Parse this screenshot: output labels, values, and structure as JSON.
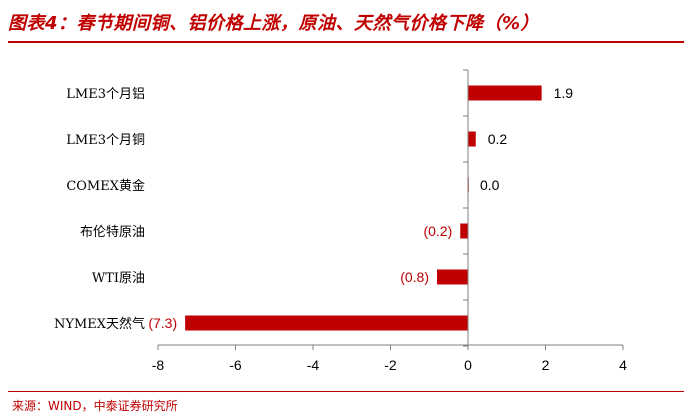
{
  "header": {
    "title": "图表4：春节期间铜、铝价格上涨，原油、天然气价格下降（%）"
  },
  "footer": {
    "source": "来源：WIND，中泰证券研究所"
  },
  "colors": {
    "bar": "#c00000",
    "negative_label": "#c00000",
    "positive_label": "#000000",
    "axis": "#7f7f7f"
  },
  "chart_data": {
    "type": "bar",
    "orientation": "horizontal",
    "title": "",
    "xlabel": "",
    "ylabel": "",
    "xlim": [
      -8,
      4
    ],
    "xticks": [
      -8,
      -6,
      -4,
      -2,
      0,
      2,
      4
    ],
    "grid": false,
    "legend": false,
    "categories": [
      "LME3个月铝",
      "LME3个月铜",
      "COMEX黄金",
      "布伦特原油",
      "WTI原油",
      "NYMEX天然气"
    ],
    "values": [
      1.9,
      0.2,
      0.0,
      -0.2,
      -0.8,
      -7.3
    ],
    "value_labels": [
      "1.9",
      "0.2",
      "0.0",
      "(0.2)",
      "(0.8)",
      "(7.3)"
    ]
  }
}
